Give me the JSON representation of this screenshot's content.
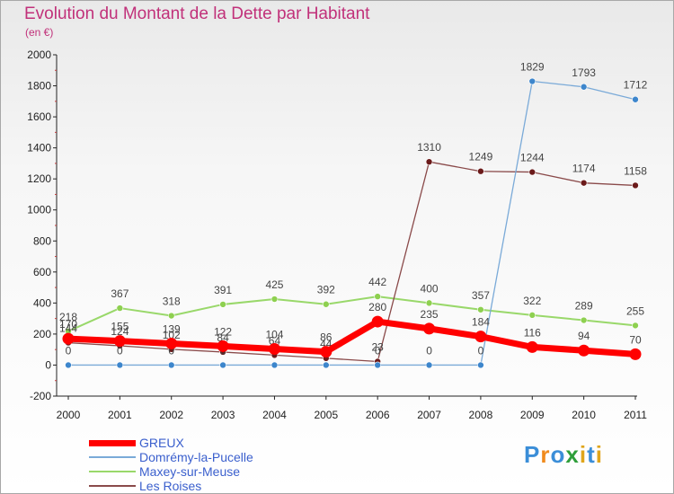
{
  "title": "Evolution du Montant de la Dette par Habitant",
  "unit_label": "(en €)",
  "logo": {
    "text": "Proxiti",
    "colors": [
      "#3b8ed8",
      "#f08a1c",
      "#3b8ed8",
      "#2e9e3a",
      "#e0a51a",
      "#3b8ed8",
      "#e0a51a"
    ]
  },
  "chart_data": {
    "type": "line",
    "x": [
      "2000",
      "2001",
      "2002",
      "2003",
      "2004",
      "2005",
      "2006",
      "2007",
      "2008",
      "2009",
      "2010",
      "2011"
    ],
    "ylim": [
      -200,
      2000
    ],
    "yticks": [
      "-200",
      "0",
      "200",
      "400",
      "600",
      "800",
      "1000",
      "1200",
      "1400",
      "1600",
      "1800",
      "2000"
    ],
    "grid": false,
    "legend_position": "bottom-left",
    "series": [
      {
        "name": "Maxey-sur-Meuse",
        "color": "#99d86a",
        "point_color": "#8ed050",
        "width": 2,
        "values": [
          218,
          367,
          318,
          391,
          425,
          392,
          442,
          400,
          357,
          322,
          289,
          255
        ]
      },
      {
        "name": "Les Roises",
        "color": "#8a4a4a",
        "point_color": "#6b1a1a",
        "width": 1.3,
        "values": [
          144,
          124,
          102,
          84,
          64,
          44,
          23,
          1310,
          1249,
          1244,
          1174,
          1158
        ]
      },
      {
        "name": "Domrémy-la-Pucelle",
        "color": "#7aaad8",
        "point_color": "#3d86cc",
        "width": 1.3,
        "values": [
          0,
          0,
          0,
          0,
          0,
          0,
          0,
          0,
          0,
          1829,
          1793,
          1712
        ]
      },
      {
        "name": "GREUX",
        "color": "#ff0000",
        "point_color": "#ff0000",
        "width": 7,
        "values": [
          170,
          155,
          139,
          122,
          104,
          86,
          280,
          235,
          184,
          116,
          94,
          70
        ]
      }
    ],
    "legend_order": [
      "GREUX",
      "Domrémy-la-Pucelle",
      "Maxey-sur-Meuse",
      "Les Roises"
    ]
  }
}
